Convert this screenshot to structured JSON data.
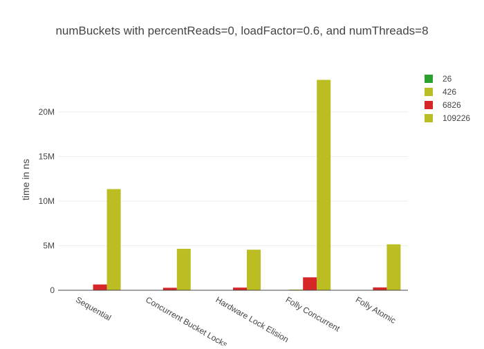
{
  "chart_data": {
    "type": "bar",
    "title": "numBuckets with percentReads=0, loadFactor=0.6, and numThreads=8",
    "xlabel": "",
    "ylabel": "time in ns",
    "categories": [
      "Sequential",
      "Concurrent Bucket Locks",
      "Hardware Lock Elision",
      "Folly Concurrent",
      "Folly Atomic"
    ],
    "ylim": [
      0,
      25000000
    ],
    "yticks": [
      0,
      5000000,
      10000000,
      15000000,
      20000000
    ],
    "ytick_labels": [
      "0",
      "5M",
      "10M",
      "15M",
      "20M"
    ],
    "grid": true,
    "legend_position": "top-right",
    "series": [
      {
        "name": "26",
        "color": "#2ca02c",
        "values": [
          0,
          0,
          0,
          0,
          0
        ]
      },
      {
        "name": "426",
        "color": "#bcbd22",
        "values": [
          0,
          0,
          0,
          80000,
          0
        ]
      },
      {
        "name": "6826",
        "color": "#d62728",
        "values": [
          650000,
          280000,
          300000,
          1450000,
          320000
        ]
      },
      {
        "name": "109226",
        "color": "#bcbd22",
        "values": [
          11350000,
          4650000,
          4550000,
          23600000,
          5150000
        ]
      }
    ]
  }
}
